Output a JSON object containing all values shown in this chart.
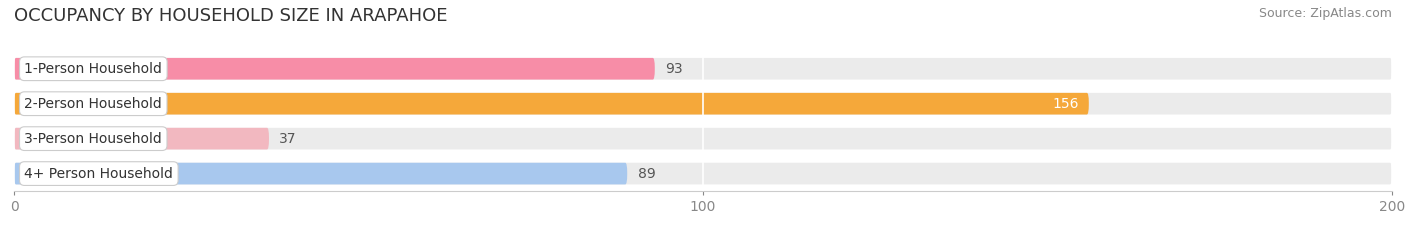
{
  "title": "OCCUPANCY BY HOUSEHOLD SIZE IN ARAPAHOE",
  "source": "Source: ZipAtlas.com",
  "categories": [
    "1-Person Household",
    "2-Person Household",
    "3-Person Household",
    "4+ Person Household"
  ],
  "values": [
    93,
    156,
    37,
    89
  ],
  "bar_colors": [
    "#f78da7",
    "#f5a83a",
    "#f2b8c0",
    "#a8c8ee"
  ],
  "bar_label_colors": [
    "#555555",
    "#ffffff",
    "#555555",
    "#555555"
  ],
  "xlim": [
    0,
    200
  ],
  "xticks": [
    0,
    100,
    200
  ],
  "background_color": "#ffffff",
  "bar_bg_color": "#ebebeb",
  "title_fontsize": 13,
  "label_fontsize": 10,
  "tick_fontsize": 10,
  "source_fontsize": 9
}
